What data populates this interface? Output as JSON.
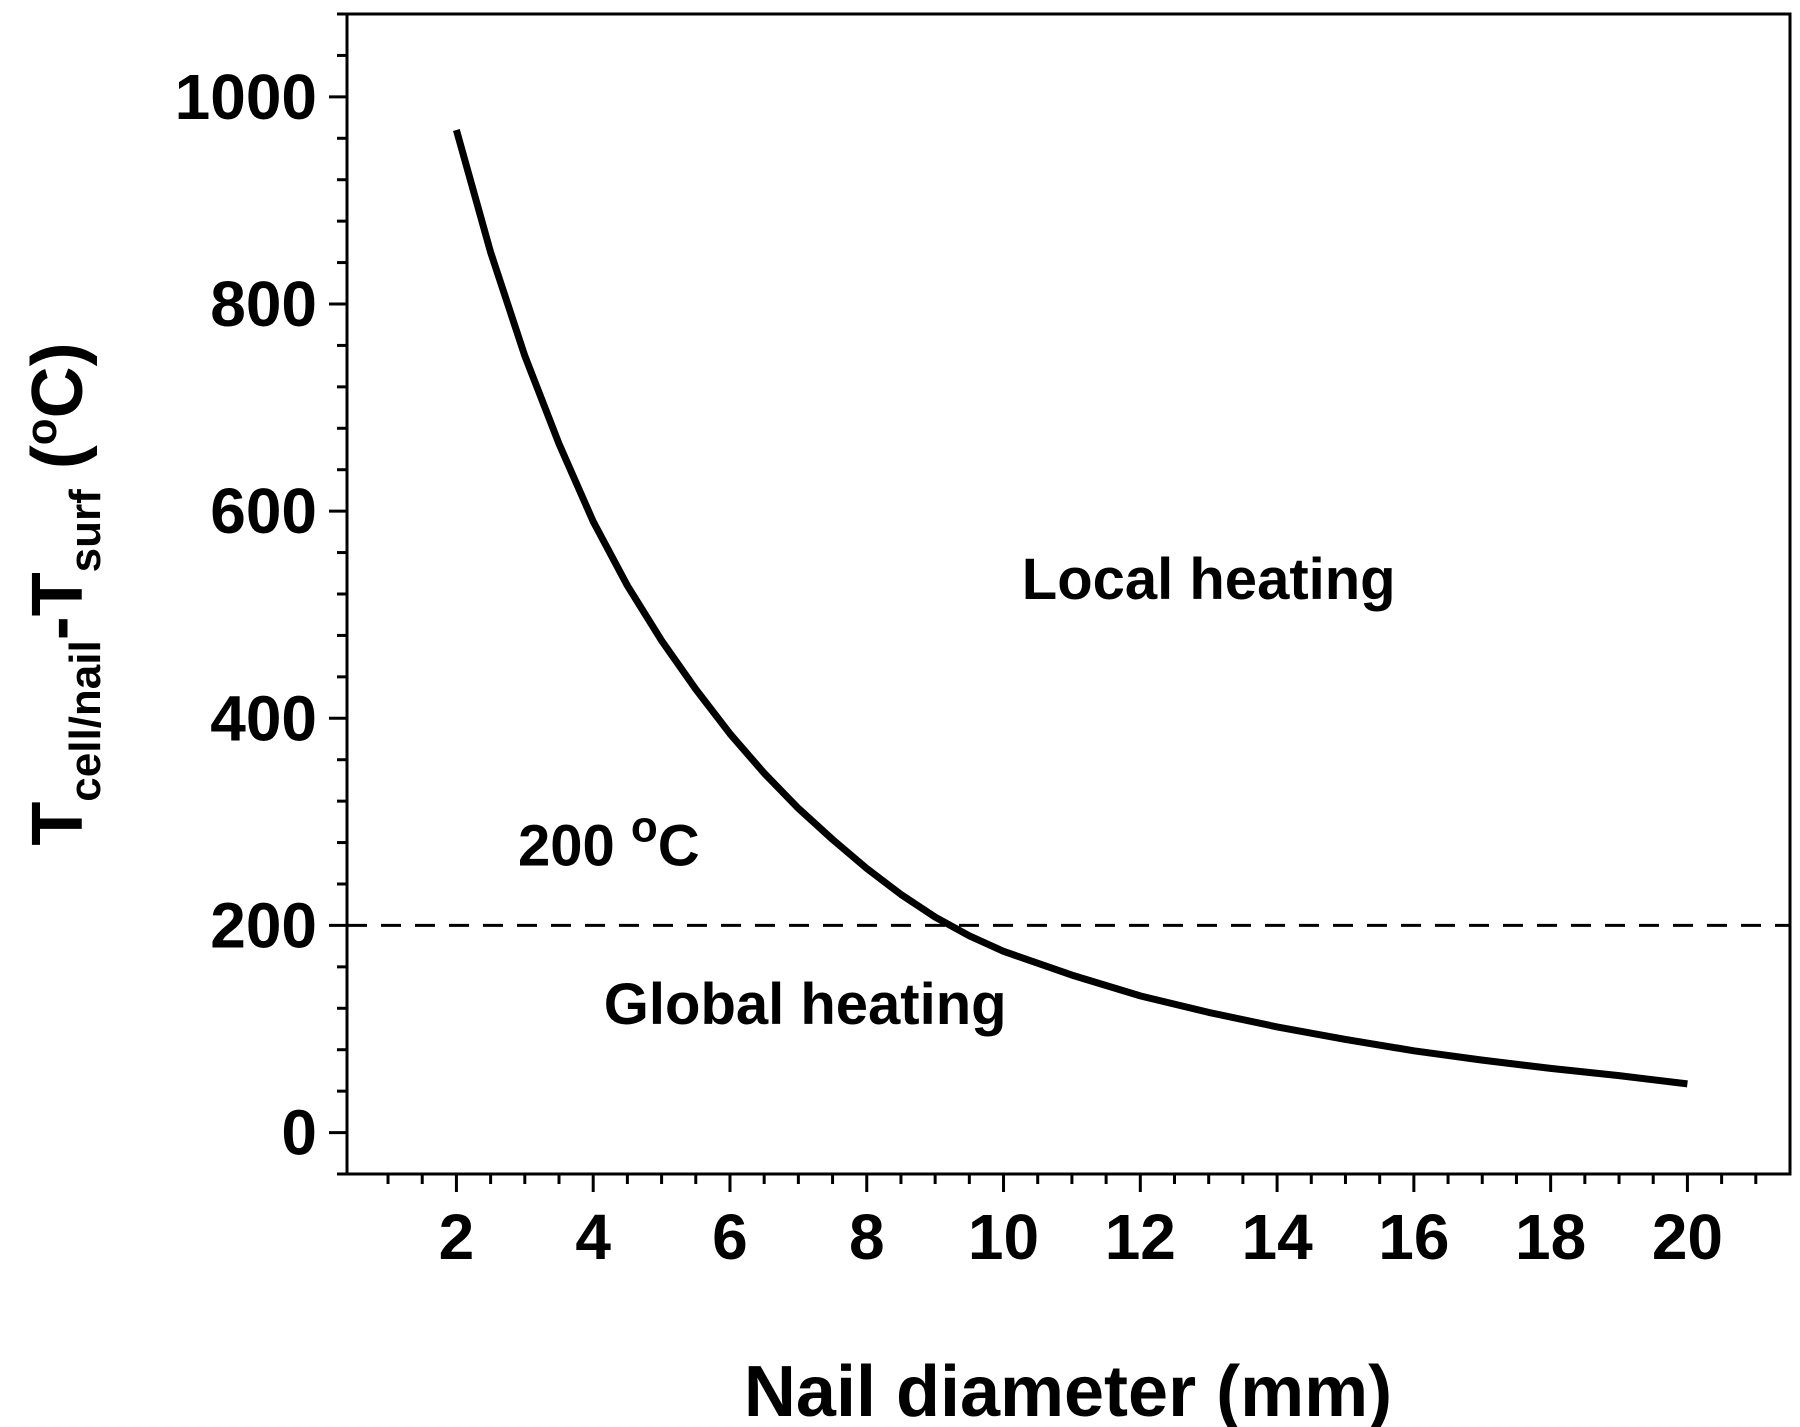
{
  "chart_data": {
    "type": "line",
    "xlabel": "Nail diameter (mm)",
    "ylabel": {
      "main1": "T",
      "sub1": "cell/nail",
      "main2": "-T",
      "sub2": "surf",
      "sup_prefix": " (",
      "sup": "o",
      "suffix": "C)"
    },
    "xlim": [
      0.4,
      21.5
    ],
    "ylim": [
      -40,
      1080
    ],
    "x_ticks": [
      2,
      4,
      6,
      8,
      10,
      12,
      14,
      16,
      18,
      20
    ],
    "y_ticks": [
      0,
      200,
      400,
      600,
      800,
      1000
    ],
    "grid": false,
    "series": [
      {
        "color": "#000000",
        "x": [
          2,
          2.5,
          3,
          3.5,
          4,
          4.5,
          5,
          5.5,
          6,
          6.5,
          7,
          7.5,
          8,
          8.5,
          9,
          9.5,
          10,
          11,
          12,
          13,
          14,
          15,
          16,
          17,
          18,
          19,
          20
        ],
        "y": [
          968,
          850,
          750,
          665,
          590,
          528,
          475,
          428,
          385,
          347,
          313,
          283,
          255,
          230,
          208,
          190,
          175,
          152,
          132,
          116,
          102,
          90,
          79,
          70,
          62,
          55,
          47
        ]
      }
    ],
    "reference_line": {
      "y": 200,
      "style": "dashed",
      "color": "#000000"
    },
    "annotations": [
      {
        "text_main": "200 ",
        "text_sup": "o",
        "text_tail": "C",
        "x": 2.9,
        "y": 258
      },
      {
        "text": "Local heating",
        "x": 13.0,
        "y": 515
      },
      {
        "text": "Global heating",
        "x": 7.1,
        "y": 105
      }
    ]
  }
}
